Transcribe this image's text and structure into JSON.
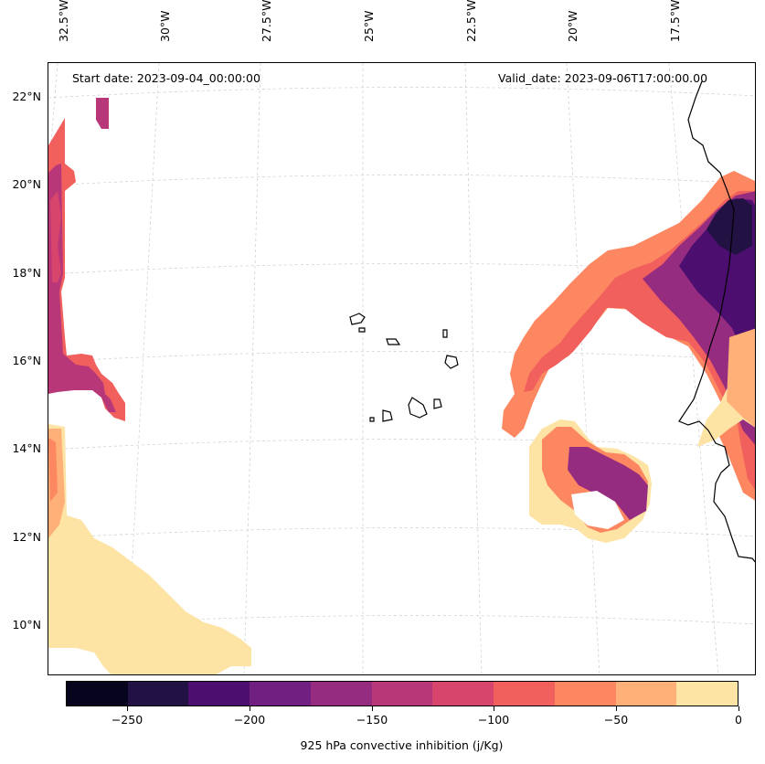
{
  "map": {
    "lon_labels": [
      "32.5°W",
      "30°W",
      "27.5°W",
      "25°W",
      "22.5°W",
      "20°W",
      "17.5°W"
    ],
    "lat_labels": [
      "22°N",
      "20°N",
      "18°N",
      "16°N",
      "14°N",
      "12°N",
      "10°N"
    ],
    "start_date": "Start date: 2023-09-04_00:00:00",
    "valid_date": "Valid_date: 2023-09-06T17:00:00.00",
    "gridlines": true,
    "coastline_color": "#000000",
    "gridline_color": "#cccccc"
  },
  "colorbar": {
    "title": "925 hPa convective inhibition (j/Kg)",
    "tick_labels": [
      "−250",
      "−200",
      "−150",
      "−100",
      "−50",
      "0"
    ],
    "tick_values": [
      -250,
      -200,
      -150,
      -100,
      -50,
      0
    ],
    "range": [
      -275,
      0
    ],
    "levels": [
      -275,
      -250,
      -225,
      -200,
      -175,
      -150,
      -125,
      -100,
      -75,
      -50,
      -25,
      0
    ],
    "colors": [
      "#07051e",
      "#221244",
      "#4c0f6f",
      "#711f81",
      "#952c80",
      "#b73779",
      "#d8456c",
      "#f1605d",
      "#fc8761",
      "#feb078",
      "#fde3a4"
    ]
  }
}
